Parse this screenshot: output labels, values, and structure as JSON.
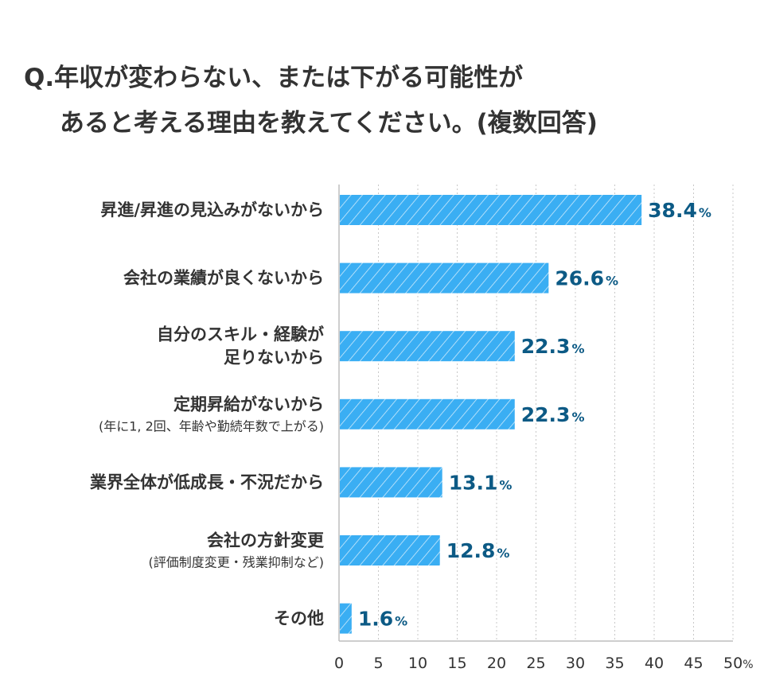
{
  "chart_data": {
    "type": "bar",
    "orientation": "horizontal",
    "title_line1": "Q.年収が変わらない、または下がる可能性が",
    "title_line2": "あると考える理由を教えてください。(複数回答)",
    "categories": [
      {
        "lines": [
          "昇進/昇進の見込みがないから"
        ],
        "sub": ""
      },
      {
        "lines": [
          "会社の業績が良くないから"
        ],
        "sub": ""
      },
      {
        "lines": [
          "自分のスキル・経験が",
          "足りないから"
        ],
        "sub": ""
      },
      {
        "lines": [
          "定期昇給がないから"
        ],
        "sub": "(年に1, 2回、年齢や勤続年数で上がる)"
      },
      {
        "lines": [
          "業界全体が低成長・不況だから"
        ],
        "sub": ""
      },
      {
        "lines": [
          "会社の方針変更"
        ],
        "sub": "(評価制度変更・残業抑制など)"
      },
      {
        "lines": [
          "その他"
        ],
        "sub": ""
      }
    ],
    "values": [
      38.4,
      26.6,
      22.3,
      22.3,
      13.1,
      12.8,
      1.6
    ],
    "value_labels": [
      "38.4",
      "26.6",
      "22.3",
      "22.3",
      "13.1",
      "12.8",
      "1.6"
    ],
    "value_unit": "%",
    "xlim": [
      0,
      50
    ],
    "xticks": [
      "0",
      "5",
      "10",
      "15",
      "20",
      "25",
      "30",
      "35",
      "40",
      "45",
      "50"
    ],
    "xtick_unit": "%",
    "grid": "vertical dotted",
    "legend": "none",
    "colors": {
      "bar": "#3aaef3",
      "bar_hatch": "#ffffff",
      "value_label": "#0c5a85",
      "text": "#333333",
      "grid": "#c8c8c8"
    }
  }
}
